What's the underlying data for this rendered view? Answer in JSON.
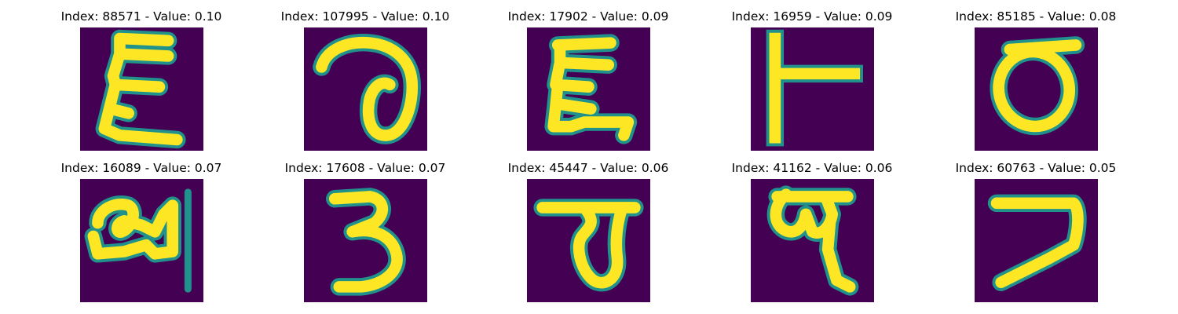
{
  "panel_fill": "#440154",
  "stroke_outer": "#21918c",
  "stroke_inner": "#fde725",
  "items": [
    {
      "title": "Index: 88571 - Value: 0.10",
      "glyph": "glyph-1"
    },
    {
      "title": "Index: 107995 - Value: 0.10",
      "glyph": "glyph-2"
    },
    {
      "title": "Index: 17902 - Value: 0.09",
      "glyph": "glyph-3"
    },
    {
      "title": "Index: 16959 - Value: 0.09",
      "glyph": "glyph-4"
    },
    {
      "title": "Index: 85185 - Value: 0.08",
      "glyph": "glyph-5"
    },
    {
      "title": "Index: 16089 - Value: 0.07",
      "glyph": "glyph-6"
    },
    {
      "title": "Index: 17608 - Value: 0.07",
      "glyph": "glyph-7"
    },
    {
      "title": "Index: 45447 - Value: 0.06",
      "glyph": "glyph-8"
    },
    {
      "title": "Index: 41162 - Value: 0.06",
      "glyph": "glyph-9"
    },
    {
      "title": "Index: 60763 - Value: 0.05",
      "glyph": "glyph-10"
    }
  ]
}
